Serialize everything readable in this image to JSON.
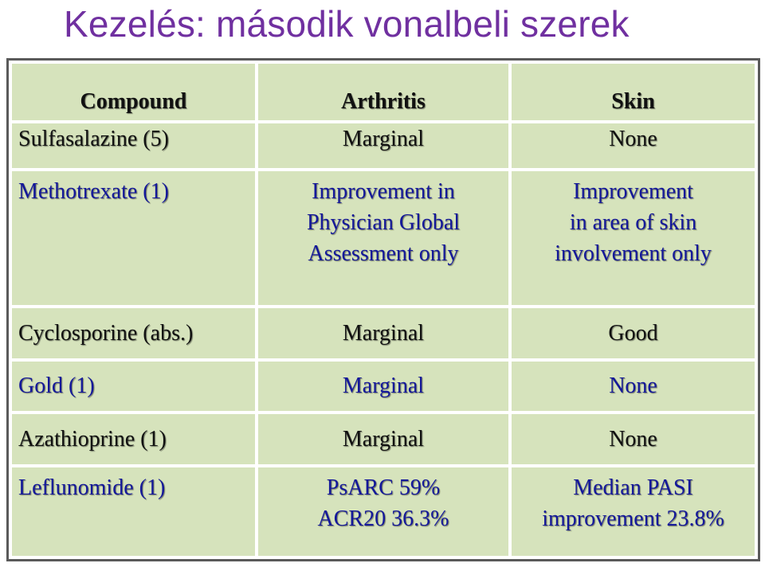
{
  "title": "Kezelés: második vonalbeli szerek",
  "headers": [
    "Compound",
    "Arthritis",
    "Skin"
  ],
  "rows": [
    {
      "compound": "Sulfasalazine (5)",
      "arthritis": [
        "Marginal"
      ],
      "skin": [
        "None"
      ]
    },
    {
      "compound": "Methotrexate (1)",
      "arthritis": [
        "Improvement in",
        "Physician Global",
        "Assessment only"
      ],
      "skin": [
        "Improvement",
        "in area of skin",
        "involvement only"
      ]
    },
    {
      "compound": "Cyclosporine (abs.)",
      "arthritis": [
        "Marginal"
      ],
      "skin": [
        "Good"
      ]
    },
    {
      "compound": "Gold (1)",
      "arthritis": [
        "Marginal"
      ],
      "skin": [
        "None"
      ]
    },
    {
      "compound": "Azathioprine (1)",
      "arthritis": [
        "Marginal"
      ],
      "skin": [
        "None"
      ]
    },
    {
      "compound": "Leflunomide (1)",
      "arthritis": [
        "PsARC 59%",
        "ACR20 36.3%"
      ],
      "skin": [
        "Median PASI",
        "improvement 23.8%"
      ]
    }
  ],
  "colors": {
    "title": "#7030A0",
    "cell_bg": "#d6e3bc",
    "blue_text": "#14189a",
    "black_text": "#111111"
  }
}
